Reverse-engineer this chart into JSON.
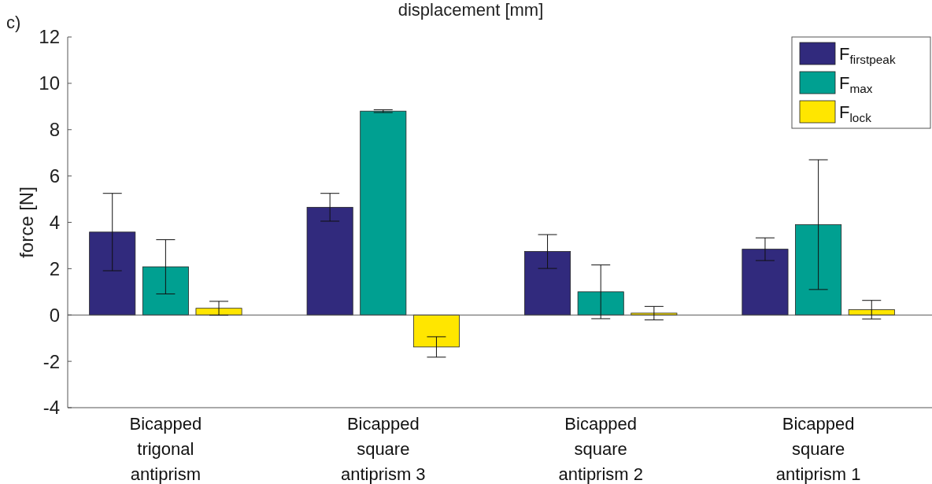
{
  "chart_data": {
    "type": "bar",
    "title": "displacement [mm]",
    "ylabel": "force [N]",
    "annotations": [
      "c)"
    ],
    "categories": [
      "Bicapped trigonal antiprism",
      "Bicapped square antiprism 3",
      "Bicapped square antiprism 2",
      "Bicapped square antiprism 1"
    ],
    "series": [
      {
        "name": "F$_{firstpeak}$",
        "color": "#312a7d",
        "values": [
          3.58,
          4.65,
          2.74,
          2.84
        ],
        "errors": [
          1.67,
          0.6,
          0.73,
          0.49
        ]
      },
      {
        "name": "F$_{max}$",
        "color": "#00a091",
        "values": [
          2.08,
          8.8,
          1.0,
          3.9
        ],
        "errors": [
          1.17,
          0.06,
          1.16,
          2.8
        ]
      },
      {
        "name": "F$_{lock}$",
        "color": "#ffe600",
        "values": [
          0.29,
          -1.38,
          0.08,
          0.23
        ],
        "errors": [
          0.3,
          0.44,
          0.29,
          0.4
        ]
      }
    ],
    "ylim": [
      -4,
      12
    ],
    "yticks": [
      -4,
      -2,
      0,
      2,
      4,
      6,
      8,
      10,
      12
    ],
    "legend": "top right"
  }
}
